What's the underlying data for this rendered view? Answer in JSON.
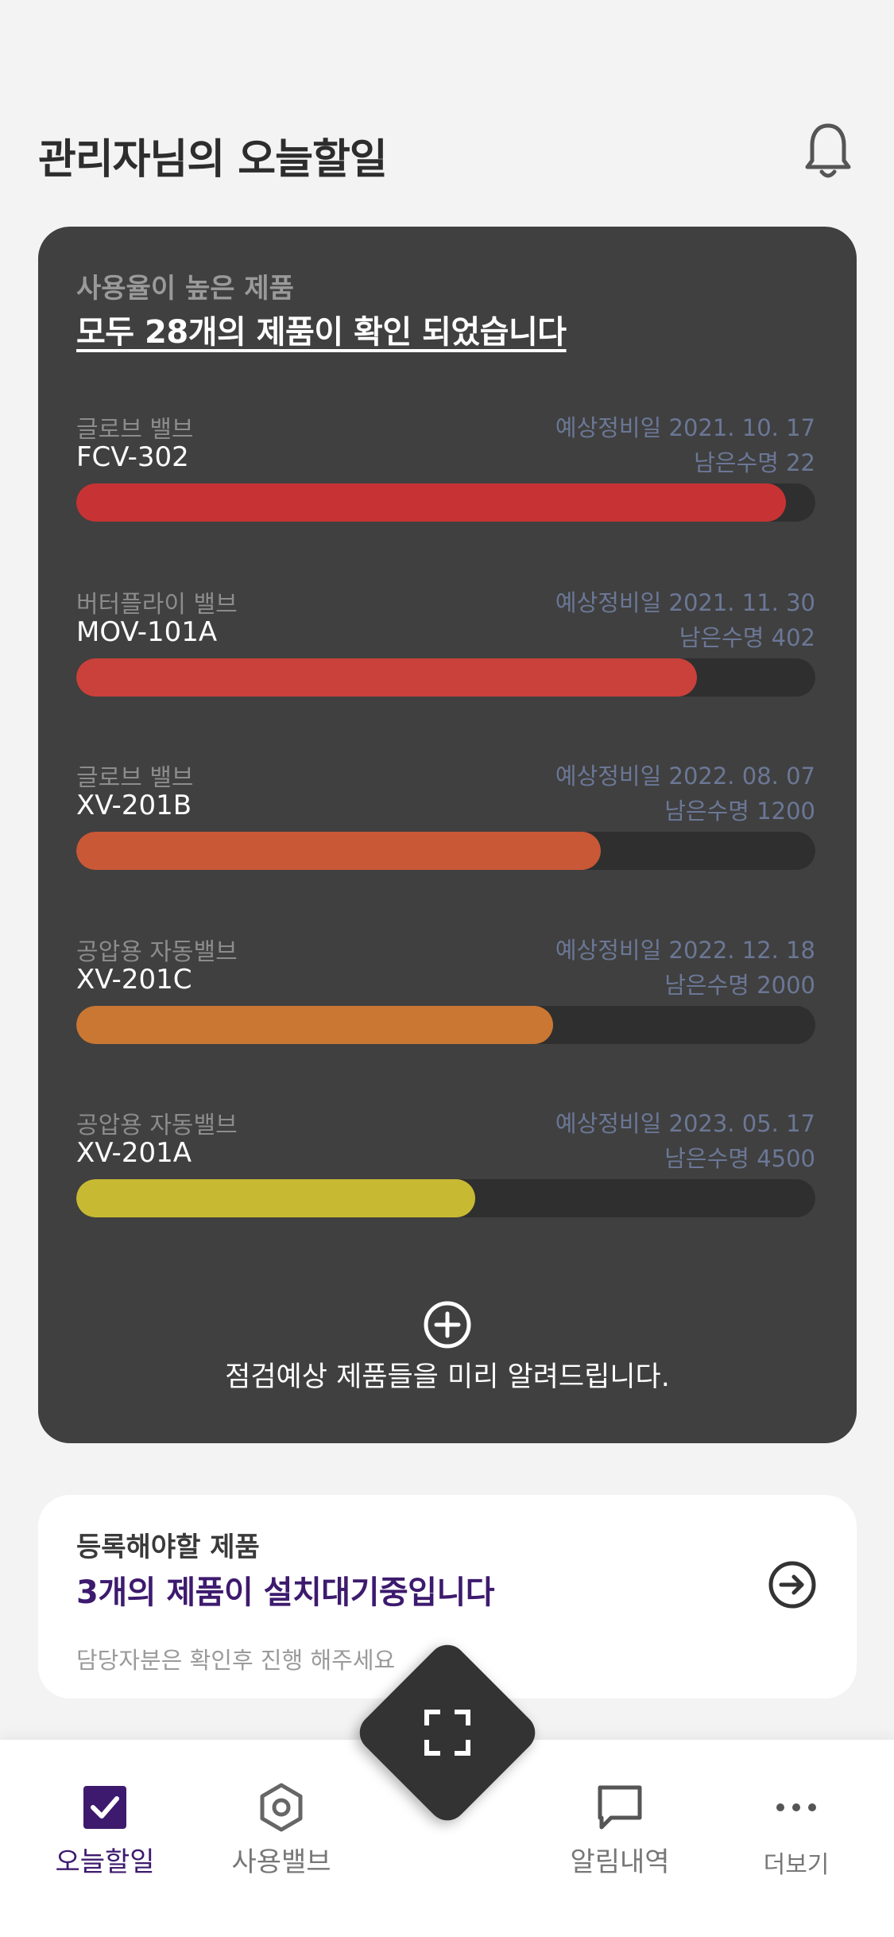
{
  "header": {
    "title": "관리자님의 오늘할일"
  },
  "usage_card": {
    "subtitle": "사용율이 높은 제품",
    "headline": "모두 28개의 제품이 확인 되었습니다",
    "items": [
      {
        "category": "글로브 밸브",
        "code": "FCV-302",
        "due": "예상정비일 2021. 10. 17",
        "life": "남은수명 22",
        "level": 0.96,
        "color": "#c73334"
      },
      {
        "category": "버터플라이 밸브",
        "code": "MOV-101A",
        "due": "예상정비일 2021. 11. 30",
        "life": "남은수명 402",
        "level": 0.84,
        "color": "#c9413a"
      },
      {
        "category": "글로브 밸브",
        "code": "XV-201B",
        "due": "예상정비일 2022. 08. 07",
        "life": "남은수명 1200",
        "level": 0.71,
        "color": "#c95837"
      },
      {
        "category": "공압용 자동밸브",
        "code": "XV-201C",
        "due": "예상정비일 2022. 12. 18",
        "life": "남은수명 2000",
        "level": 0.645,
        "color": "#c97733"
      },
      {
        "category": "공압용 자동밸브",
        "code": "XV-201A",
        "due": "예상정비일 2023. 05. 17",
        "life": "남은수명 4500",
        "level": 0.54,
        "color": "#c8b933"
      }
    ],
    "footer": "점검예상 제품들을 미리 알려드립니다."
  },
  "register_card": {
    "title": "등록해야할 제품",
    "headline": "3개의 제품이 설치대기중입니다",
    "note": "담당자분은 확인후 진행 해주세요"
  },
  "nav": {
    "today": "오늘할일",
    "valves": "사용밸브",
    "alerts": "알림내역",
    "more": "더보기"
  },
  "colors": {
    "accent": "#3d1a6e",
    "card_dark": "#404040"
  }
}
